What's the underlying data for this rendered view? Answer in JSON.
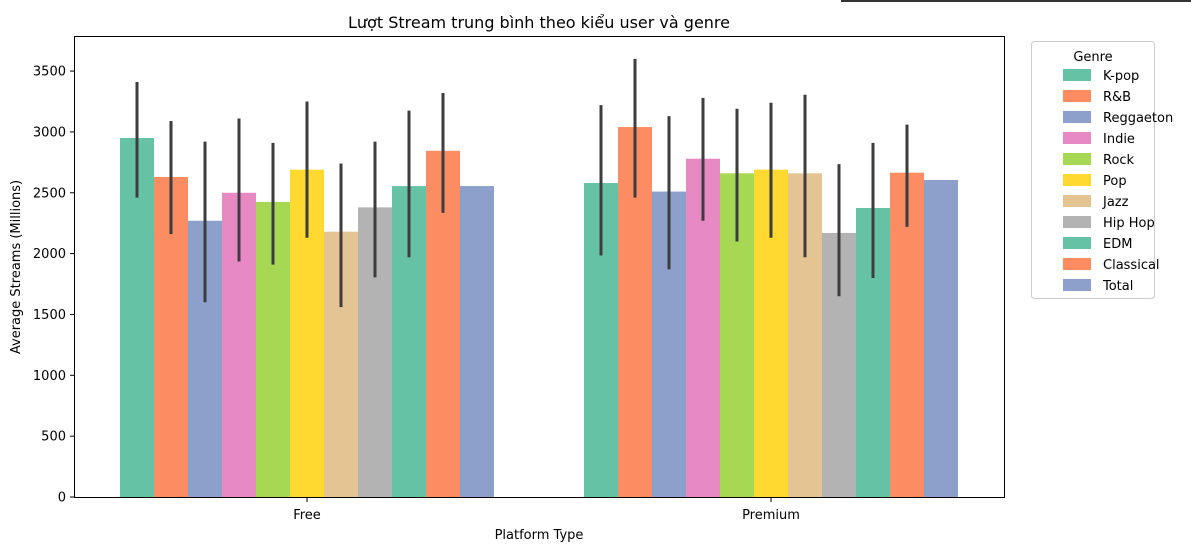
{
  "chart_data": {
    "type": "bar",
    "title": "Lượt Stream trung bình theo kiểu user và genre",
    "xlabel": "Platform Type",
    "ylabel": "Average Streams (Millions)",
    "ylim": [
      0,
      3780
    ],
    "yticks": [
      0,
      500,
      1000,
      1500,
      2000,
      2500,
      3000,
      3500
    ],
    "categories": [
      "Free",
      "Premium"
    ],
    "legend_title": "Genre",
    "legend_position": "outside-right",
    "grid": false,
    "series": [
      {
        "name": "K-pop",
        "color": "#66c2a5",
        "values": [
          2950,
          2580
        ],
        "ci": [
          [
            2460,
            3410
          ],
          [
            1985,
            3220
          ]
        ]
      },
      {
        "name": "R&B",
        "color": "#fc8d62",
        "values": [
          2630,
          3040
        ],
        "ci": [
          [
            2160,
            3090
          ],
          [
            2460,
            3600
          ]
        ]
      },
      {
        "name": "Reggaeton",
        "color": "#8da0cb",
        "values": [
          2270,
          2510
        ],
        "ci": [
          [
            1600,
            2920
          ],
          [
            1870,
            3130
          ]
        ]
      },
      {
        "name": "Indie",
        "color": "#e78ac3",
        "values": [
          2500,
          2780
        ],
        "ci": [
          [
            1935,
            3110
          ],
          [
            2270,
            3280
          ]
        ]
      },
      {
        "name": "Rock",
        "color": "#a6d854",
        "values": [
          2425,
          2660
        ],
        "ci": [
          [
            1910,
            2910
          ],
          [
            2100,
            3190
          ]
        ]
      },
      {
        "name": "Pop",
        "color": "#ffd92f",
        "values": [
          2690,
          2690
        ],
        "ci": [
          [
            2130,
            3250
          ],
          [
            2130,
            3240
          ]
        ]
      },
      {
        "name": "Jazz",
        "color": "#e5c494",
        "values": [
          2180,
          2660
        ],
        "ci": [
          [
            1560,
            2740
          ],
          [
            1970,
            3305
          ]
        ]
      },
      {
        "name": "Hip Hop",
        "color": "#b3b3b3",
        "values": [
          2380,
          2170
        ],
        "ci": [
          [
            1805,
            2920
          ],
          [
            1650,
            2735
          ]
        ]
      },
      {
        "name": "EDM",
        "color": "#66c2a5",
        "values": [
          2555,
          2375
        ],
        "ci": [
          [
            1970,
            3175
          ],
          [
            1800,
            2910
          ]
        ]
      },
      {
        "name": "Classical",
        "color": "#fc8d62",
        "values": [
          2845,
          2665
        ],
        "ci": [
          [
            2335,
            3320
          ],
          [
            2220,
            3060
          ]
        ]
      },
      {
        "name": "Total",
        "color": "#8da0cb",
        "values": [
          2555,
          2605
        ],
        "ci": null
      }
    ]
  }
}
